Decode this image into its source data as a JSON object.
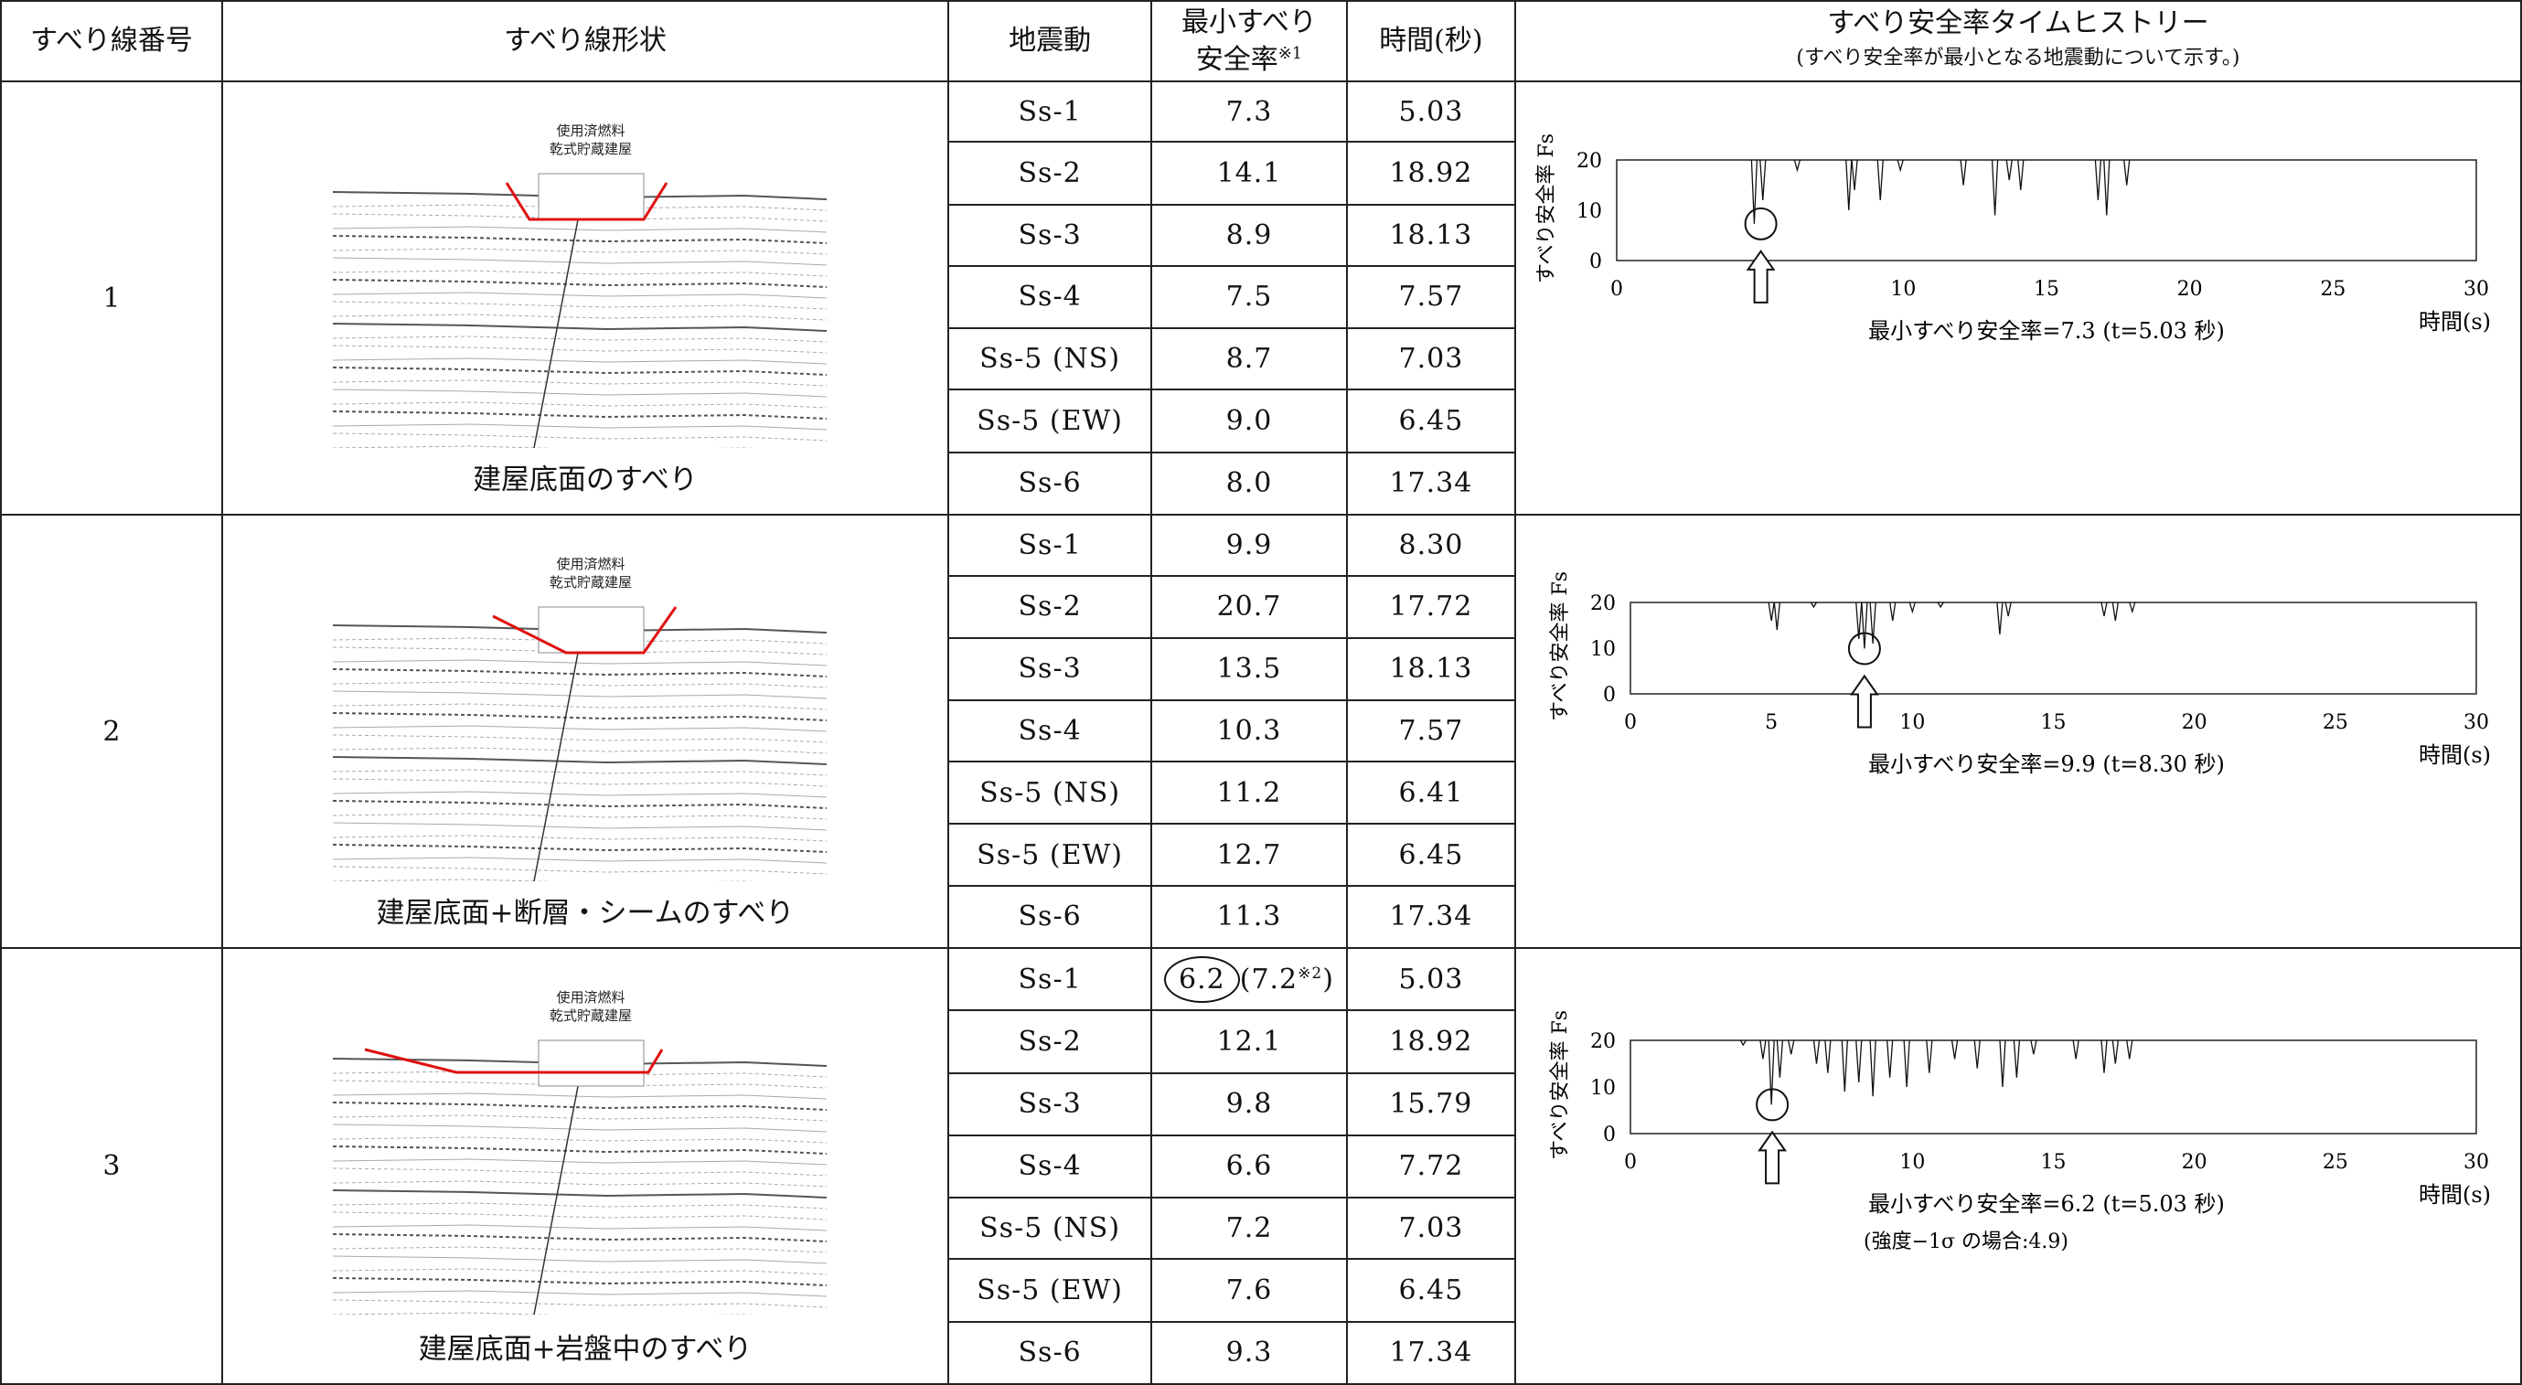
{
  "headers": {
    "slip_no": "すべり線番号",
    "slip_shape": "すべり線形状",
    "ground_motion": "地震動",
    "min_fs_line1": "最小すべり",
    "min_fs_line2": "安全率",
    "min_fs_note": "※1",
    "time": "時間(秒)",
    "history_title": "すべり安全率タイムヒストリー",
    "history_sub": "(すべり安全率が最小となる地震動について示す。)"
  },
  "building_label_1": "使用済燃料",
  "building_label_2": "乾式貯蔵建屋",
  "axis": {
    "ylabel": "すべり安全率 Fs",
    "xlabel": "時間(s)",
    "xticks": [
      "0",
      "5",
      "10",
      "15",
      "20",
      "25",
      "30"
    ],
    "yticks": [
      "0",
      "10",
      "20"
    ]
  },
  "groups": [
    {
      "no": "1",
      "caption": "建屋底面のすべり",
      "rows": [
        {
          "motion": "Ss-1",
          "fs": "7.3",
          "time": "5.03"
        },
        {
          "motion": "Ss-2",
          "fs": "14.1",
          "time": "18.92"
        },
        {
          "motion": "Ss-3",
          "fs": "8.9",
          "time": "18.13"
        },
        {
          "motion": "Ss-4",
          "fs": "7.5",
          "time": "7.57"
        },
        {
          "motion": "Ss-5 (NS)",
          "fs": "8.7",
          "time": "7.03"
        },
        {
          "motion": "Ss-5 (EW)",
          "fs": "9.0",
          "time": "6.45"
        },
        {
          "motion": "Ss-6",
          "fs": "8.0",
          "time": "17.34"
        }
      ],
      "result": "最小すべり安全率=7.3 (t=5.03 秒)",
      "chart_data": {
        "type": "line",
        "xlim": [
          0,
          30
        ],
        "ylim": [
          0,
          20
        ],
        "min_point": {
          "x": 5.03,
          "y": 7.3
        },
        "dips": [
          [
            4.8,
            7.3
          ],
          [
            5.1,
            12
          ],
          [
            6.3,
            18
          ],
          [
            8.1,
            10
          ],
          [
            8.3,
            14
          ],
          [
            9.2,
            12
          ],
          [
            9.9,
            18
          ],
          [
            12.1,
            15
          ],
          [
            13.2,
            9
          ],
          [
            13.7,
            16
          ],
          [
            14.1,
            14
          ],
          [
            16.8,
            12
          ],
          [
            17.1,
            9
          ],
          [
            17.8,
            15
          ]
        ]
      }
    },
    {
      "no": "2",
      "caption": "建屋底面+断層・シームのすべり",
      "rows": [
        {
          "motion": "Ss-1",
          "fs": "9.9",
          "time": "8.30"
        },
        {
          "motion": "Ss-2",
          "fs": "20.7",
          "time": "17.72"
        },
        {
          "motion": "Ss-3",
          "fs": "13.5",
          "time": "18.13"
        },
        {
          "motion": "Ss-4",
          "fs": "10.3",
          "time": "7.57"
        },
        {
          "motion": "Ss-5 (NS)",
          "fs": "11.2",
          "time": "6.41"
        },
        {
          "motion": "Ss-5 (EW)",
          "fs": "12.7",
          "time": "6.45"
        },
        {
          "motion": "Ss-6",
          "fs": "11.3",
          "time": "17.34"
        }
      ],
      "result": "最小すべり安全率=9.9 (t=8.30 秒)",
      "chart_data": {
        "type": "line",
        "xlim": [
          0,
          30
        ],
        "ylim": [
          0,
          20
        ],
        "min_point": {
          "x": 8.3,
          "y": 9.9
        },
        "dips": [
          [
            5.0,
            16
          ],
          [
            5.2,
            14
          ],
          [
            6.5,
            19
          ],
          [
            8.1,
            12
          ],
          [
            8.3,
            9.9
          ],
          [
            8.6,
            11
          ],
          [
            9.3,
            16
          ],
          [
            10.0,
            18
          ],
          [
            11.0,
            19
          ],
          [
            13.1,
            13
          ],
          [
            13.4,
            17
          ],
          [
            16.8,
            17
          ],
          [
            17.2,
            16
          ],
          [
            17.8,
            18
          ]
        ]
      }
    },
    {
      "no": "3",
      "caption": "建屋底面+岩盤中のすべり",
      "rows": [
        {
          "motion": "Ss-1",
          "fs": "6.2",
          "fs_alt": "(7.2",
          "fs_alt_note": "※2",
          "fs_alt_close": ")",
          "time": "5.03"
        },
        {
          "motion": "Ss-2",
          "fs": "12.1",
          "time": "18.92"
        },
        {
          "motion": "Ss-3",
          "fs": "9.8",
          "time": "15.79"
        },
        {
          "motion": "Ss-4",
          "fs": "6.6",
          "time": "7.72"
        },
        {
          "motion": "Ss-5 (NS)",
          "fs": "7.2",
          "time": "7.03"
        },
        {
          "motion": "Ss-5 (EW)",
          "fs": "7.6",
          "time": "6.45"
        },
        {
          "motion": "Ss-6",
          "fs": "9.3",
          "time": "17.34"
        }
      ],
      "result": "最小すべり安全率=6.2 (t=5.03 秒)",
      "result_note": "(強度−1σ の場合:4.9)",
      "chart_data": {
        "type": "line",
        "xlim": [
          0,
          30
        ],
        "ylim": [
          0,
          20
        ],
        "min_point": {
          "x": 5.03,
          "y": 6.2
        },
        "dips": [
          [
            4.0,
            19
          ],
          [
            4.7,
            16
          ],
          [
            5.0,
            6.2
          ],
          [
            5.3,
            12
          ],
          [
            5.7,
            17
          ],
          [
            6.6,
            15
          ],
          [
            7.0,
            13
          ],
          [
            7.6,
            9
          ],
          [
            8.1,
            11
          ],
          [
            8.6,
            8
          ],
          [
            9.2,
            12
          ],
          [
            9.8,
            10
          ],
          [
            10.6,
            13
          ],
          [
            11.5,
            16
          ],
          [
            12.3,
            14
          ],
          [
            13.2,
            10
          ],
          [
            13.7,
            12
          ],
          [
            14.3,
            17
          ],
          [
            15.8,
            16
          ],
          [
            16.8,
            13
          ],
          [
            17.2,
            15
          ],
          [
            17.7,
            16
          ]
        ]
      }
    }
  ]
}
